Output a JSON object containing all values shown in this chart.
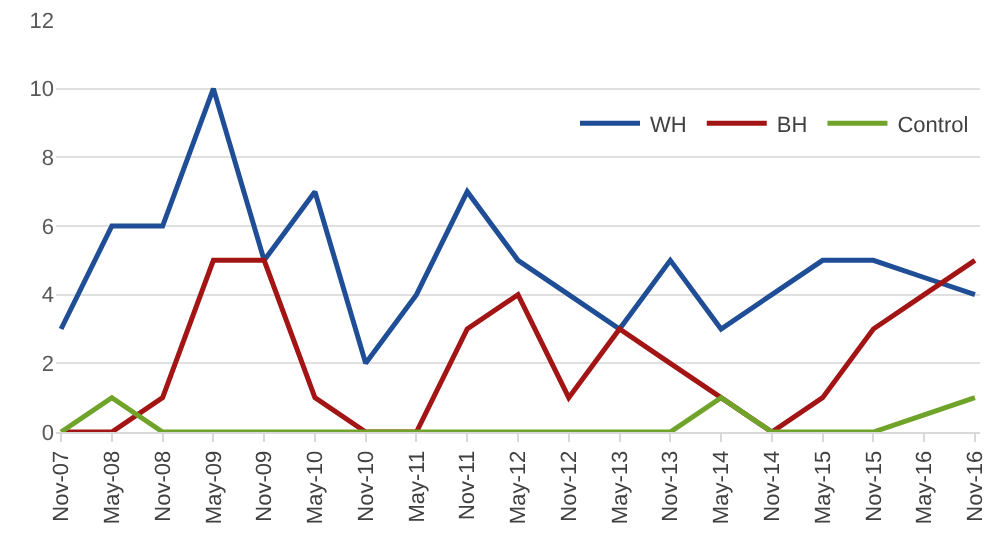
{
  "chart_data": {
    "type": "line",
    "categories": [
      "Nov-07",
      "May-08",
      "Nov-08",
      "May-09",
      "Nov-09",
      "May-10",
      "Nov-10",
      "May-11",
      "Nov-11",
      "May-12",
      "Nov-12",
      "May-13",
      "Nov-13",
      "May-14",
      "Nov-14",
      "May-15",
      "Nov-15",
      "May-16",
      "Nov-16"
    ],
    "series": [
      {
        "name": "WH",
        "color": "#1f4e96",
        "values": [
          3,
          6,
          6,
          10,
          5,
          7,
          2,
          4,
          7,
          5,
          4,
          3,
          5,
          3,
          4,
          5,
          5,
          4.5,
          4
        ]
      },
      {
        "name": "BH",
        "color": "#a31515",
        "values": [
          0,
          0,
          1,
          5,
          5,
          1,
          0,
          0,
          3,
          4,
          1,
          3,
          2,
          1,
          0,
          1,
          3,
          4,
          5
        ]
      },
      {
        "name": "Control",
        "color": "#6fa329",
        "values": [
          0,
          1,
          0,
          0,
          0,
          0,
          0,
          0,
          0,
          0,
          0,
          0,
          0,
          1,
          0,
          0,
          0,
          0.5,
          1
        ]
      }
    ],
    "ylim": [
      0,
      12
    ],
    "yticks": [
      0,
      2,
      4,
      6,
      8,
      10,
      12
    ],
    "grid": "y",
    "legend": "top right",
    "marker": "none",
    "line_style": "solid"
  }
}
